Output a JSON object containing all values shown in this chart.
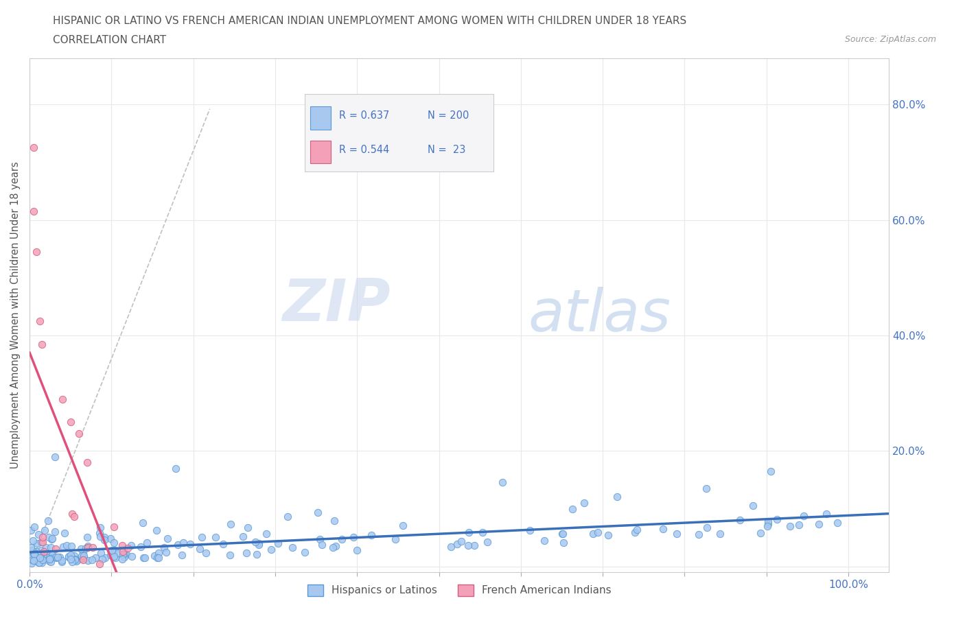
{
  "title_line1": "HISPANIC OR LATINO VS FRENCH AMERICAN INDIAN UNEMPLOYMENT AMONG WOMEN WITH CHILDREN UNDER 18 YEARS",
  "title_line2": "CORRELATION CHART",
  "source_text": "Source: ZipAtlas.com",
  "ylabel": "Unemployment Among Women with Children Under 18 years",
  "watermark_zip": "ZIP",
  "watermark_atlas": "atlas",
  "series": [
    {
      "name": "Hispanics or Latinos",
      "R": 0.637,
      "N": 200,
      "color_scatter": "#a8c8f0",
      "color_line": "#3a6fba",
      "edge_color": "#5b9bd5",
      "seed": 42
    },
    {
      "name": "French American Indians",
      "R": 0.544,
      "N": 23,
      "color_scatter": "#f4a0b8",
      "color_line": "#e0507a",
      "edge_color": "#d06080",
      "seed": 77
    }
  ],
  "xlim": [
    0.0,
    1.05
  ],
  "ylim": [
    -0.01,
    0.88
  ],
  "xticks": [
    0.0,
    0.1,
    0.2,
    0.3,
    0.4,
    0.5,
    0.6,
    0.7,
    0.8,
    0.9,
    1.0
  ],
  "yticks": [
    0.0,
    0.2,
    0.4,
    0.6,
    0.8
  ],
  "background_color": "#ffffff",
  "grid_color": "#e8e8e8",
  "text_color": "#4472c4",
  "title_color": "#555555",
  "dashed_line_color": "#c0c0c0",
  "legend_facecolor": "#f5f5f8",
  "legend_edgecolor": "#cccccc"
}
